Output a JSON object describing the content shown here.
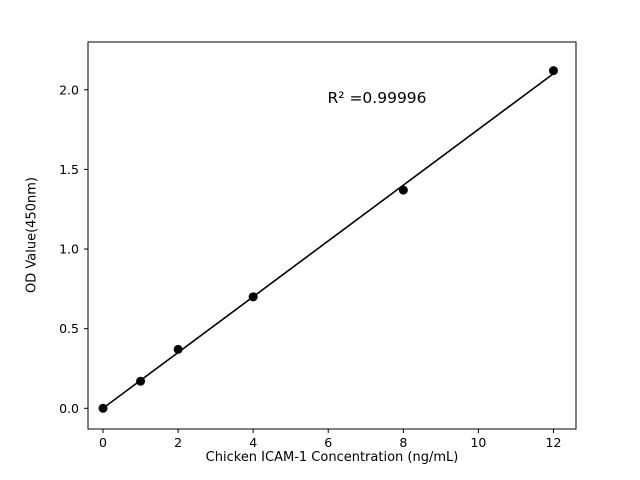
{
  "chart_data": {
    "type": "scatter",
    "x": [
      0,
      1,
      2,
      4,
      8,
      12
    ],
    "y": [
      0.0,
      0.17,
      0.37,
      0.7,
      1.37,
      2.12
    ],
    "title": "",
    "xlabel": "Chicken ICAM-1 Concentration (ng/mL)",
    "ylabel": "OD Value(450nm)",
    "xlim": [
      -0.4,
      12.6
    ],
    "ylim": [
      -0.13,
      2.3
    ],
    "xticks": [
      0,
      2,
      4,
      6,
      8,
      10,
      12
    ],
    "yticks": [
      0.0,
      0.5,
      1.0,
      1.5,
      2.0
    ],
    "annotation": "R² =0.99996",
    "annotation_pos": [
      7.3,
      1.95
    ],
    "has_fit_line": true,
    "grid": false,
    "legend": "none",
    "marker_color": "#000000",
    "line_color": "#000000",
    "background_color": "#ffffff"
  }
}
